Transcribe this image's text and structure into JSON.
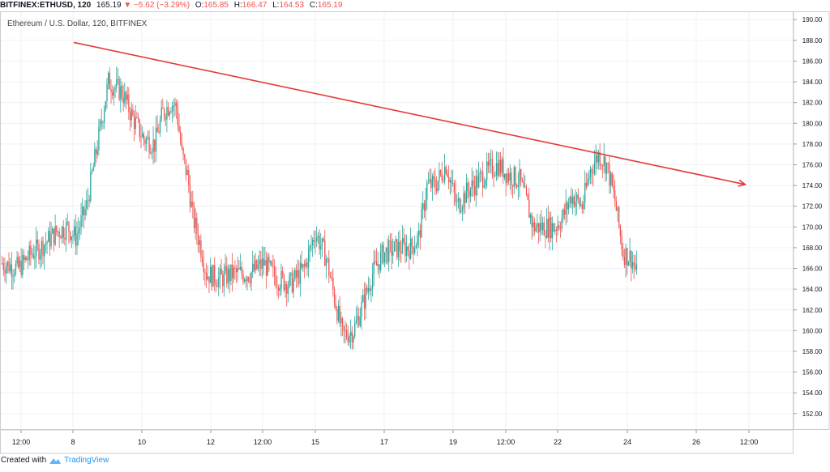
{
  "header": {
    "symbol": "BITFINEX:ETHUSD, 120",
    "last": "165.19",
    "change": "−5.62 (−3.29%)",
    "open_label": "O:",
    "open": "165.85",
    "high_label": "H:",
    "high": "166.47",
    "low_label": "L:",
    "low": "164.53",
    "close_label": "C:",
    "close": "165.19"
  },
  "legend_text": "Ethereum / U.S. Dollar, 120, BITFINEX",
  "footer": {
    "prefix": "Created with",
    "brand": "TradingView"
  },
  "colors": {
    "up": "#26a69a",
    "down": "#ef5350",
    "trendline": "#e53935",
    "grid": "#eef0f3"
  },
  "chart_data": {
    "type": "candlestick",
    "title": "Ethereum / U.S. Dollar, 120, BITFINEX",
    "x_ticks": [
      "12:00",
      "8",
      "10",
      "12",
      "12:00",
      "15",
      "17",
      "19",
      "12:00",
      "22",
      "24",
      "26",
      "12:00"
    ],
    "y_ticks": [
      "152.00",
      "154.00",
      "156.00",
      "158.00",
      "160.00",
      "162.00",
      "164.00",
      "166.00",
      "168.00",
      "170.00",
      "172.00",
      "174.00",
      "176.00",
      "178.00",
      "180.00",
      "182.00",
      "184.00",
      "186.00",
      "188.00",
      "190.00"
    ],
    "ylim": [
      150.5,
      190.8
    ],
    "grid": true,
    "anchors": [
      [
        0,
        166.5
      ],
      [
        12,
        166.0
      ],
      [
        22,
        167.5
      ],
      [
        28,
        168.0
      ],
      [
        40,
        169.5
      ],
      [
        48,
        170.0
      ],
      [
        54,
        169.0
      ],
      [
        62,
        172.0
      ],
      [
        70,
        178.0
      ],
      [
        78,
        184.0
      ],
      [
        88,
        183.0
      ],
      [
        96,
        180.5
      ],
      [
        104,
        178.5
      ],
      [
        112,
        178.0
      ],
      [
        118,
        181.0
      ],
      [
        124,
        182.0
      ],
      [
        128,
        181.5
      ],
      [
        132,
        177.0
      ],
      [
        136,
        175.0
      ],
      [
        140,
        171.0
      ],
      [
        146,
        168.0
      ],
      [
        150,
        165.5
      ],
      [
        160,
        165.0
      ],
      [
        170,
        165.5
      ],
      [
        182,
        165.5
      ],
      [
        192,
        166.5
      ],
      [
        202,
        165.0
      ],
      [
        212,
        164.5
      ],
      [
        222,
        166.0
      ],
      [
        230,
        169.5
      ],
      [
        238,
        167.0
      ],
      [
        242,
        164.5
      ],
      [
        250,
        159.5
      ],
      [
        258,
        160.0
      ],
      [
        266,
        163.0
      ],
      [
        272,
        165.5
      ],
      [
        280,
        167.5
      ],
      [
        292,
        168.0
      ],
      [
        300,
        168.0
      ],
      [
        306,
        169.0
      ],
      [
        312,
        174.0
      ],
      [
        318,
        174.0
      ],
      [
        326,
        176.0
      ],
      [
        334,
        172.0
      ],
      [
        342,
        173.5
      ],
      [
        350,
        174.5
      ],
      [
        358,
        175.5
      ],
      [
        364,
        176.0
      ],
      [
        372,
        175.0
      ],
      [
        380,
        174.5
      ],
      [
        386,
        172.0
      ],
      [
        390,
        170.0
      ],
      [
        398,
        170.0
      ],
      [
        406,
        170.0
      ],
      [
        412,
        171.0
      ],
      [
        418,
        173.0
      ],
      [
        426,
        172.0
      ],
      [
        432,
        175.5
      ],
      [
        438,
        177.0
      ],
      [
        444,
        176.0
      ],
      [
        450,
        172.5
      ],
      [
        456,
        167.5
      ],
      [
        462,
        167.0
      ],
      [
        466,
        165.5
      ]
    ],
    "trendline": {
      "x1": 53,
      "y1": 187.8,
      "x2": 546,
      "y2": 174.1
    }
  }
}
